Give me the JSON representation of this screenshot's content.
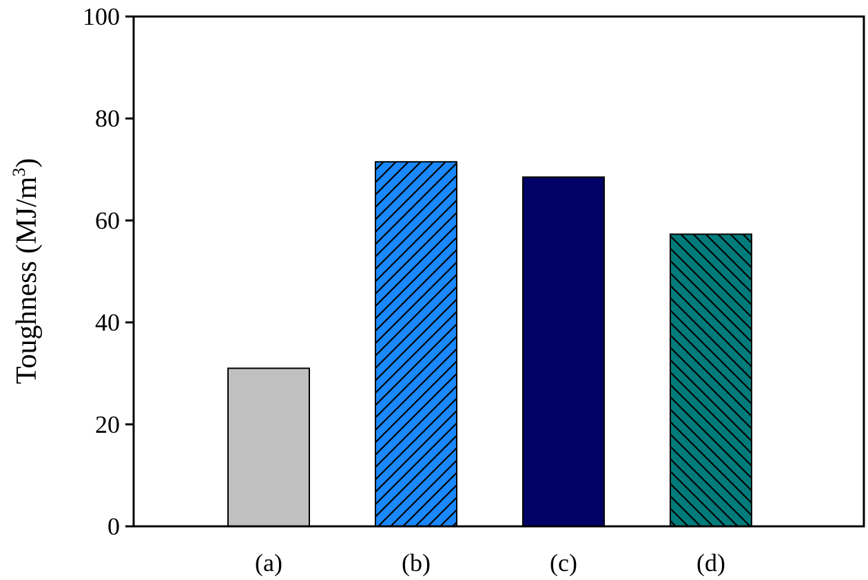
{
  "chart_data": {
    "type": "bar",
    "categories": [
      "(a)",
      "(b)",
      "(c)",
      "(d)"
    ],
    "values": [
      31,
      71.5,
      68.5,
      57.3
    ],
    "title": "",
    "xlabel": "",
    "ylabel": "Toughness (MJ/m",
    "ylabel_superscript": "3",
    "ylabel_suffix": ")",
    "ylim": [
      0,
      100
    ],
    "yticks": [
      0,
      20,
      40,
      60,
      80,
      100
    ],
    "grid": false,
    "legend": "none",
    "bar_fills": [
      "#c0c0c0",
      "#1a88ff",
      "#000066",
      "#007b7b"
    ],
    "bar_patterns": [
      "solid",
      "hatch-up",
      "solid",
      "hatch-down"
    ],
    "edge_color": "#000000"
  }
}
